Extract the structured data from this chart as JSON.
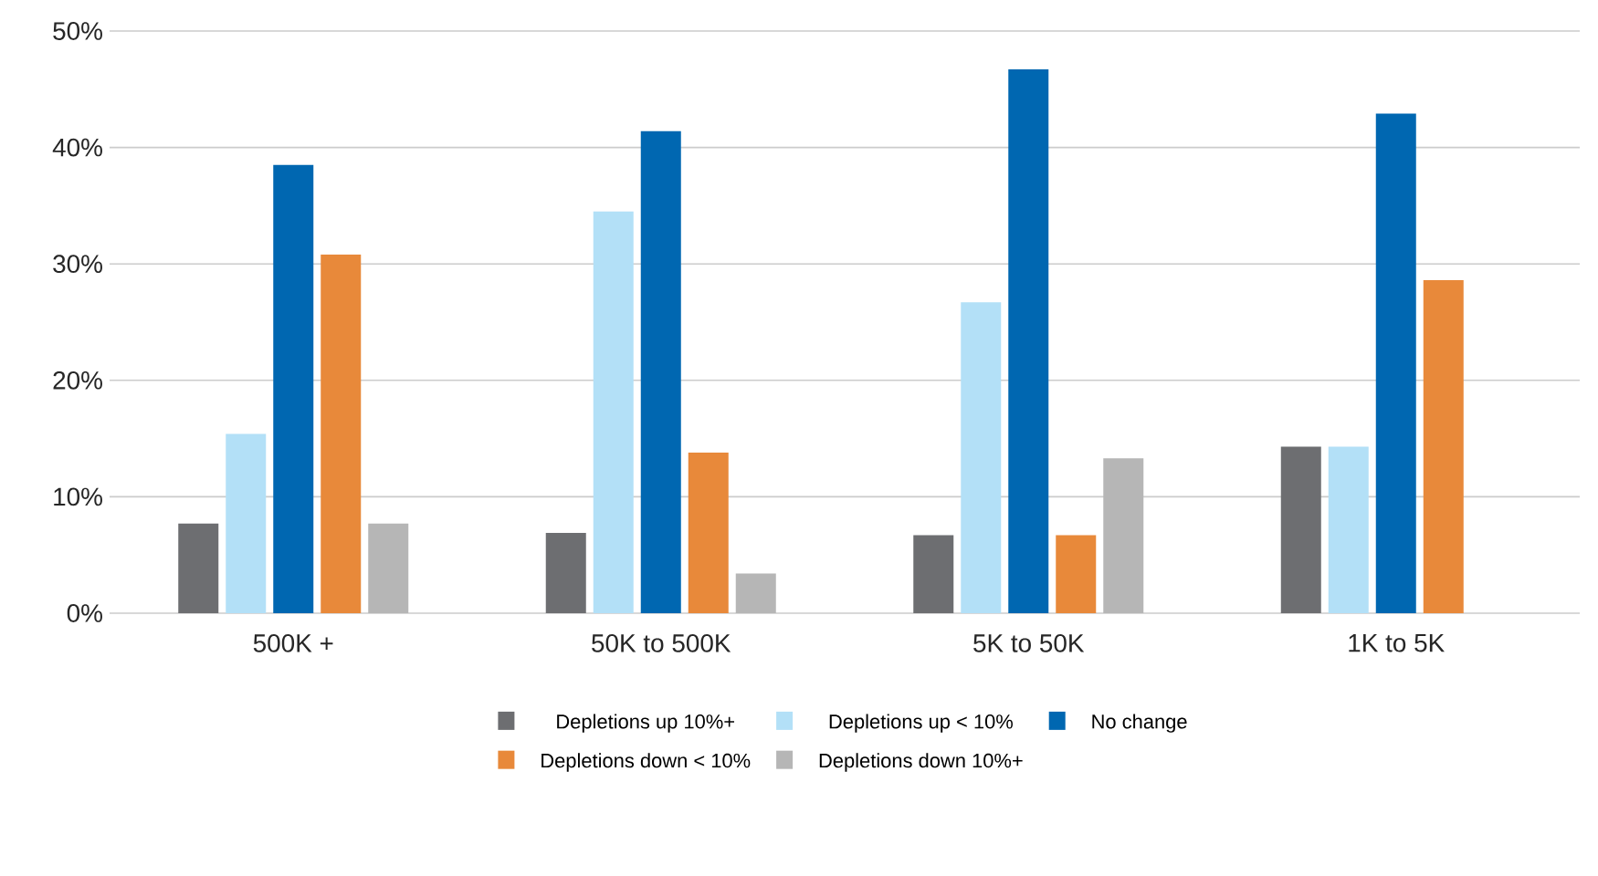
{
  "chart_data": {
    "type": "bar",
    "categories": [
      "500K +",
      "50K to 500K",
      "5K to 50K",
      "1K to 5K"
    ],
    "series": [
      {
        "name": "Depletions up 10%+",
        "color": "#6d6e71",
        "values": [
          7.7,
          6.9,
          6.7,
          14.3
        ]
      },
      {
        "name": "Depletions up < 10%",
        "color": "#b3e0f7",
        "values": [
          15.4,
          34.5,
          26.7,
          14.3
        ]
      },
      {
        "name": "No change",
        "color": "#0067b1",
        "values": [
          38.5,
          41.4,
          46.7,
          42.9
        ]
      },
      {
        "name": "Depletions down < 10%",
        "color": "#e8893a",
        "values": [
          30.8,
          13.8,
          6.7,
          28.6
        ]
      },
      {
        "name": "Depletions down 10%+",
        "color": "#b6b6b6",
        "values": [
          7.7,
          3.4,
          13.3,
          0
        ]
      }
    ],
    "ylim": [
      0,
      50
    ],
    "yticks": [
      {
        "value": 0,
        "label": "0%"
      },
      {
        "value": 10,
        "label": "10%"
      },
      {
        "value": 20,
        "label": "20%"
      },
      {
        "value": 30,
        "label": "30%"
      },
      {
        "value": 40,
        "label": "40%"
      },
      {
        "value": 50,
        "label": "50%"
      }
    ],
    "grid": "y",
    "legend": "bottom"
  }
}
